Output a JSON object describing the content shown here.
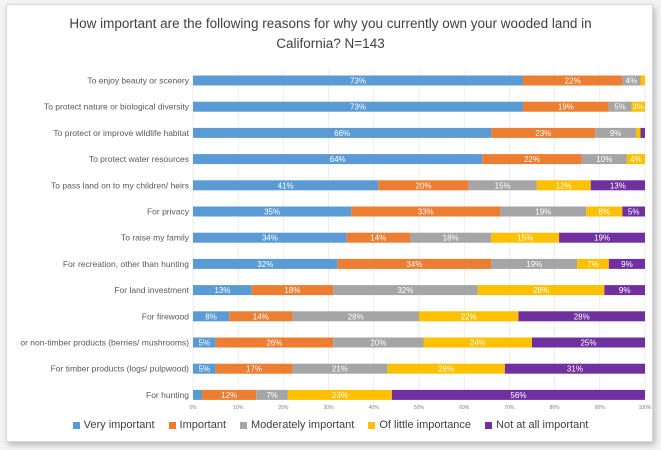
{
  "chart_data": {
    "type": "bar",
    "orientation": "horizontal",
    "stacked": "100%",
    "title_lines": [
      "How important are the following reasons for why you currently own your wooded land in",
      "California? N=143"
    ],
    "categories": [
      "To enjoy beauty or scenery",
      "To protect nature or biological diversity",
      "To protect or improve wildlife habitat",
      "To protect water resources",
      "To pass land on to my children/ heirs",
      "For privacy",
      "To raise my family",
      "For recreation, other than hunting",
      "For land investment",
      "For firewood",
      "or non-timber products (berries/ mushrooms)",
      "For timber products (logs/ pulpwood)",
      "For hunting"
    ],
    "series": [
      {
        "name": "Very important",
        "color": "#5b9bd5",
        "values": [
          73,
          73,
          66,
          64,
          41,
          35,
          34,
          32,
          13,
          8,
          5,
          5,
          2
        ]
      },
      {
        "name": "Important",
        "color": "#ed7d31",
        "values": [
          22,
          19,
          23,
          22,
          20,
          33,
          14,
          34,
          18,
          14,
          26,
          17,
          12
        ]
      },
      {
        "name": "Moderately important",
        "color": "#a5a5a5",
        "values": [
          4,
          5,
          9,
          10,
          15,
          19,
          18,
          19,
          32,
          28,
          20,
          21,
          7
        ]
      },
      {
        "name": "Of little importance",
        "color": "#ffc000",
        "values": [
          1,
          3,
          1,
          4,
          12,
          8,
          15,
          7,
          28,
          22,
          24,
          26,
          23
        ]
      },
      {
        "name": "Not at all important",
        "color": "#7030a0",
        "values": [
          0,
          0,
          1,
          0,
          13,
          5,
          19,
          9,
          9,
          28,
          25,
          31,
          56
        ]
      }
    ],
    "bar_labels": [
      [
        "73%",
        "22%",
        "4%",
        "",
        ""
      ],
      [
        "73%",
        "19%",
        "5%",
        "3%",
        ""
      ],
      [
        "66%",
        "23%",
        "9%",
        "",
        ""
      ],
      [
        "64%",
        "22%",
        "10%",
        "4%",
        ""
      ],
      [
        "41%",
        "20%",
        "15%",
        "12%",
        "13%"
      ],
      [
        "35%",
        "33%",
        "19%",
        "8%",
        "5%"
      ],
      [
        "34%",
        "14%",
        "18%",
        "15%",
        "19%"
      ],
      [
        "32%",
        "34%",
        "19%",
        "7%",
        "9%"
      ],
      [
        "13%",
        "18%",
        "32%",
        "28%",
        "9%"
      ],
      [
        "8%",
        "14%",
        "28%",
        "22%",
        "28%"
      ],
      [
        "5%",
        "26%",
        "20%",
        "24%",
        "25%"
      ],
      [
        "5%",
        "17%",
        "21%",
        "26%",
        "31%"
      ],
      [
        "",
        "12%",
        "7%",
        "23%",
        "56%"
      ]
    ],
    "x_ticks": [
      "0%",
      "10%",
      "20%",
      "30%",
      "40%",
      "50%",
      "60%",
      "70%",
      "80%",
      "90%",
      "100%"
    ],
    "xlim": [
      0,
      100
    ],
    "grid": true,
    "legend_position": "bottom"
  }
}
